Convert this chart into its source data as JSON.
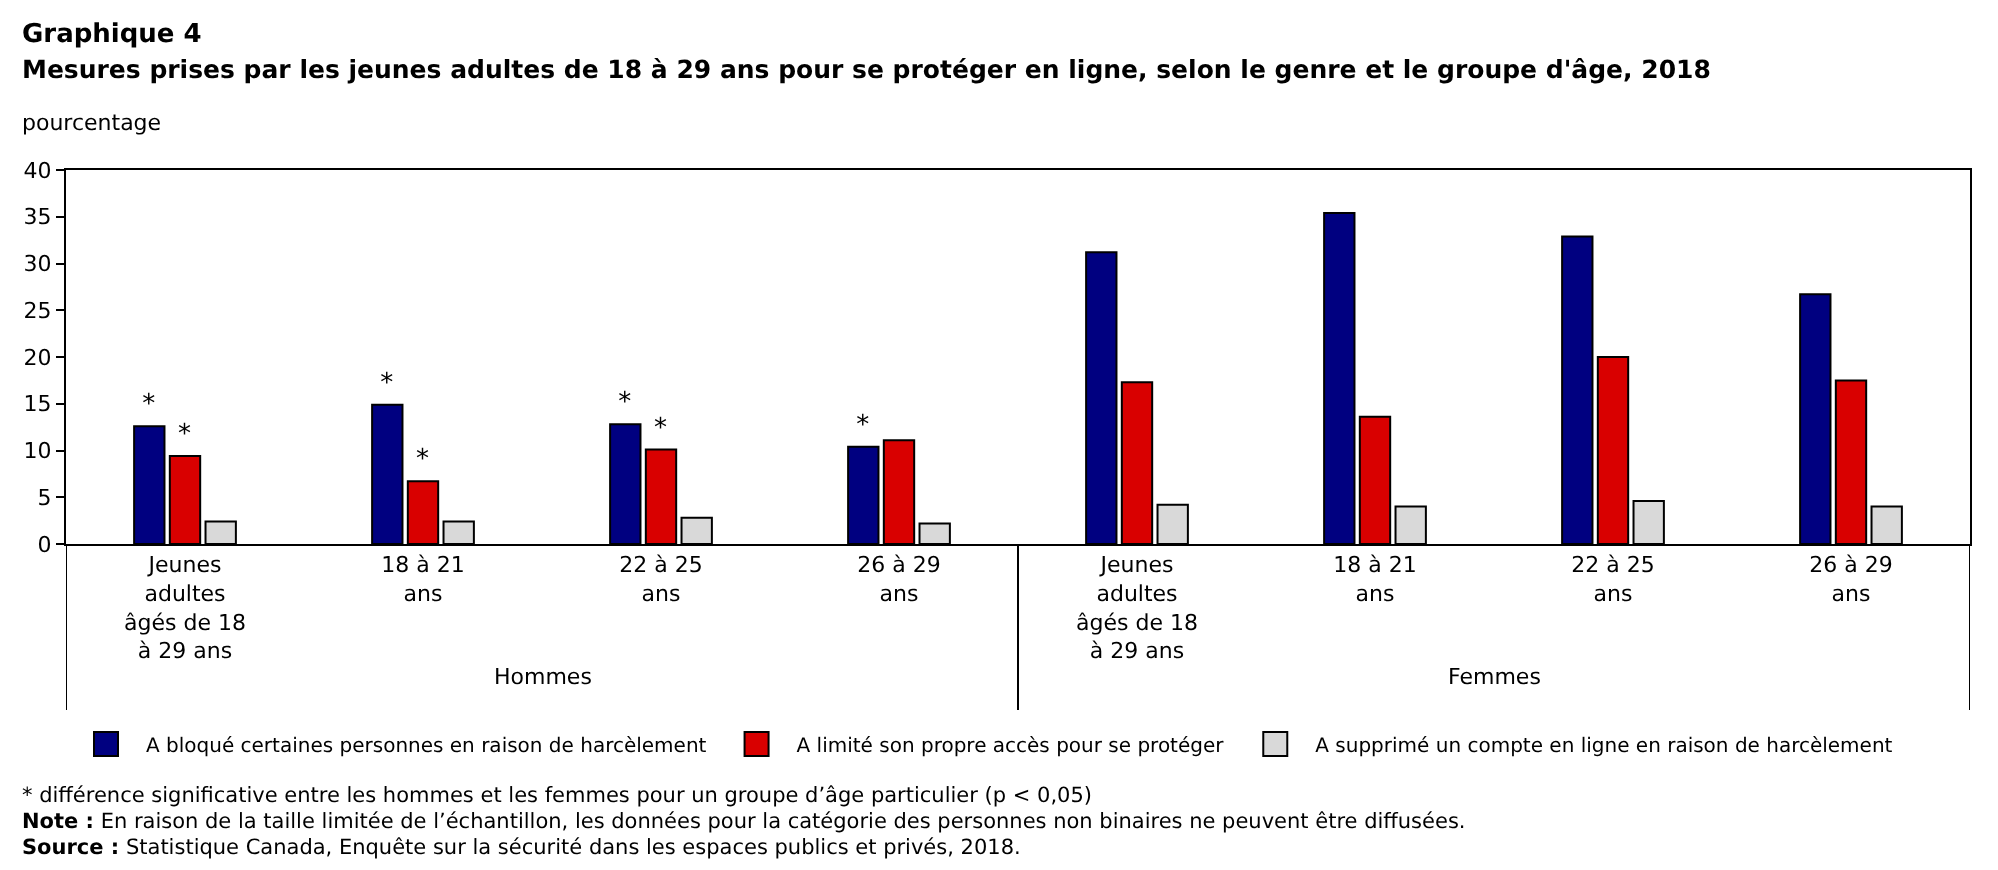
{
  "chart_data": {
    "type": "bar",
    "title": "Graphique 4",
    "subtitle": "Mesures prises par les jeunes adultes de 18 à 29 ans pour se protéger en ligne, selon le genre et le groupe d'âge, 2018",
    "ylabel": "pourcentage",
    "categories": [
      "Jeunes adultes âgés de 18 à 29 ans",
      "18 à 21 ans",
      "22 à 25 ans",
      "26 à 29 ans",
      "Jeunes adultes âgés de 18 à 29 ans",
      "18 à 21 ans",
      "22 à 25 ans",
      "26 à 29 ans"
    ],
    "series": [
      {
        "name": "A bloqué certaines personnes en raison de harcèlement",
        "color": "#000080",
        "values": [
          12.6,
          14.9,
          12.8,
          10.4,
          31.2,
          35.4,
          32.9,
          26.7
        ],
        "value_labels": [
          "*",
          "*",
          "*",
          "*",
          null,
          null,
          null,
          null
        ]
      },
      {
        "name": "A limité son propre accès pour se protéger",
        "color": "#d90000",
        "values": [
          9.4,
          6.7,
          10.1,
          11.1,
          17.3,
          13.6,
          20.0,
          17.5
        ],
        "value_labels": [
          "*",
          "*",
          "*",
          null,
          null,
          null,
          null,
          null
        ]
      },
      {
        "name": "A supprimé un compte en ligne en raison de harcèlement",
        "color": "#d9d9d9",
        "values": [
          2.4,
          2.4,
          2.8,
          2.2,
          4.2,
          4.0,
          4.6,
          4.0
        ]
      }
    ],
    "ylim": [
      0,
      40
    ],
    "yticks": [
      0,
      5,
      10,
      15,
      20,
      25,
      30,
      35,
      40
    ],
    "grid": false,
    "legend": "bottom",
    "annotations": [
      {
        "text": "Hommes"
      },
      {
        "text": "Femmes"
      },
      "* différence significative entre les hommes et les femmes pour un groupe d’âge particulier (p < 0,05)",
      "Note : En raison de la taille limitée de l’échantillon, les données pour la catégorie des personnes non binaires ne peuvent être diffusées.",
      "Source : Statistique Canada, Enquête sur la sécurité dans les espaces publics et privés, 2018."
    ]
  }
}
